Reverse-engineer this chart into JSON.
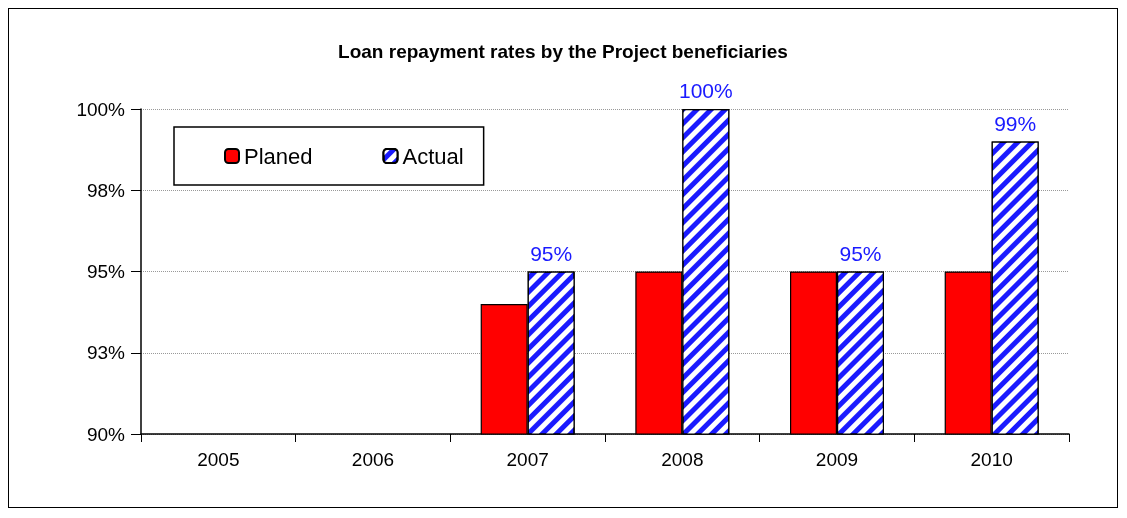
{
  "chart_data": {
    "type": "bar",
    "title": "Loan repayment rates by the Project beneficiaries",
    "categories": [
      "2005",
      "2006",
      "2007",
      "2008",
      "2009",
      "2010"
    ],
    "series": [
      {
        "name": "Planed",
        "color": "#ff0000",
        "values": [
          null,
          null,
          94,
          95,
          95,
          95
        ]
      },
      {
        "name": "Actual",
        "color": "#1a1aff",
        "values": [
          null,
          null,
          95,
          100,
          95,
          99
        ],
        "value_labels": [
          null,
          null,
          "95%",
          "100%",
          "95%",
          "99%"
        ]
      }
    ],
    "ylim": [
      90,
      100
    ],
    "yticks": [
      {
        "value": 90,
        "label": "90%"
      },
      {
        "value": 92.5,
        "label": "93%"
      },
      {
        "value": 95,
        "label": "95%"
      },
      {
        "value": 97.5,
        "label": "98%"
      },
      {
        "value": 100,
        "label": "100%"
      }
    ],
    "grid": "y",
    "legend": "top left"
  }
}
